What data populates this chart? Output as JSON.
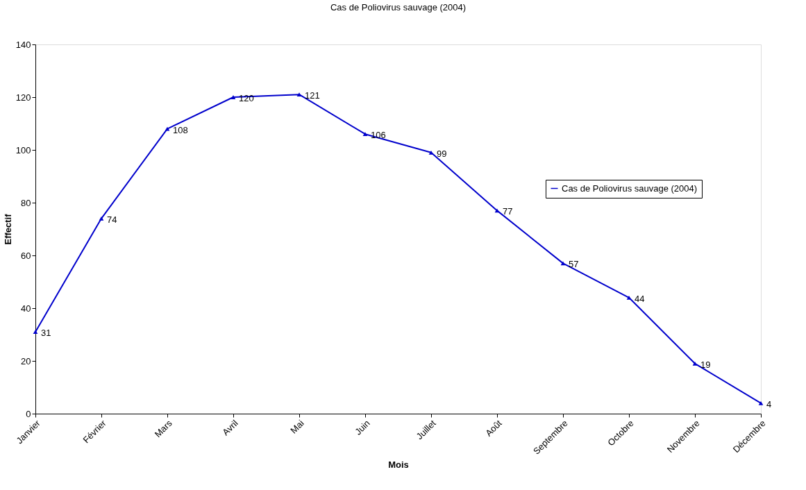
{
  "chart_data": {
    "type": "line",
    "title": "Cas de Poliovirus sauvage (2004)",
    "xlabel": "Mois",
    "ylabel": "Effectif",
    "categories": [
      "Janvier",
      "Février",
      "Mars",
      "Avril",
      "Mai",
      "Juin",
      "Juillet",
      "Août",
      "Septembre",
      "Octobre",
      "Novembre",
      "Décembre"
    ],
    "series": [
      {
        "name": "Cas de Poliovirus sauvage (2004)",
        "color": "#0000cc",
        "values": [
          31,
          74,
          108,
          120,
          121,
          106,
          99,
          77,
          57,
          44,
          19,
          4
        ]
      }
    ],
    "ylim": [
      0,
      140
    ],
    "yticks": [
      0,
      20,
      40,
      60,
      80,
      100,
      120,
      140
    ],
    "grid": false,
    "legend": "right",
    "marker": "triangle",
    "line_style": "solid",
    "data_labels": true
  }
}
